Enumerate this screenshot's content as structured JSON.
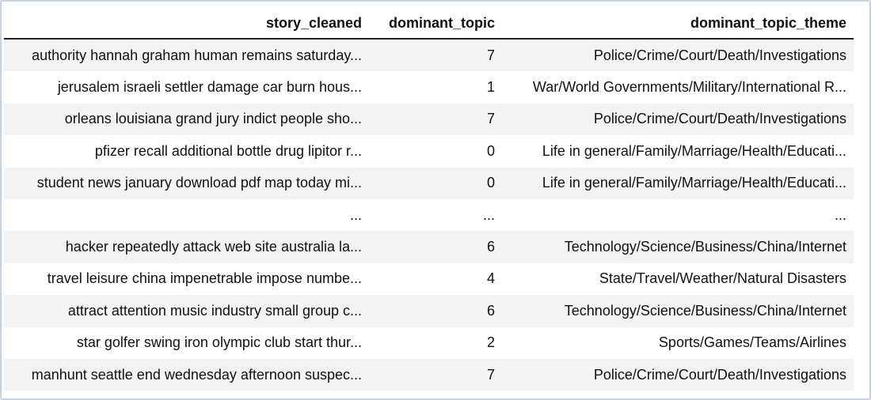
{
  "table": {
    "columns": [
      "story_cleaned",
      "dominant_topic",
      "dominant_topic_theme"
    ],
    "rows": [
      [
        "authority hannah graham human remains saturday...",
        "7",
        "Police/Crime/Court/Death/Investigations"
      ],
      [
        "jerusalem israeli settler damage car burn hous...",
        "1",
        "War/World Governments/Military/International R..."
      ],
      [
        "orleans louisiana grand jury indict people sho...",
        "7",
        "Police/Crime/Court/Death/Investigations"
      ],
      [
        "pfizer recall additional bottle drug lipitor r...",
        "0",
        "Life in general/Family/Marriage/Health/Educati..."
      ],
      [
        "student news january download pdf map today mi...",
        "0",
        "Life in general/Family/Marriage/Health/Educati..."
      ],
      [
        "...",
        "...",
        "..."
      ],
      [
        "hacker repeatedly attack web site australia la...",
        "6",
        "Technology/Science/Business/China/Internet"
      ],
      [
        "travel leisure china impenetrable impose numbe...",
        "4",
        "State/Travel/Weather/Natural Disasters"
      ],
      [
        "attract attention music industry small group c...",
        "6",
        "Technology/Science/Business/China/Internet"
      ],
      [
        "star golfer swing iron olympic club start thur...",
        "2",
        "Sports/Games/Teams/Airlines"
      ],
      [
        "manhunt seattle end wednesday afternoon suspec...",
        "7",
        "Police/Crime/Court/Death/Investigations"
      ]
    ]
  }
}
